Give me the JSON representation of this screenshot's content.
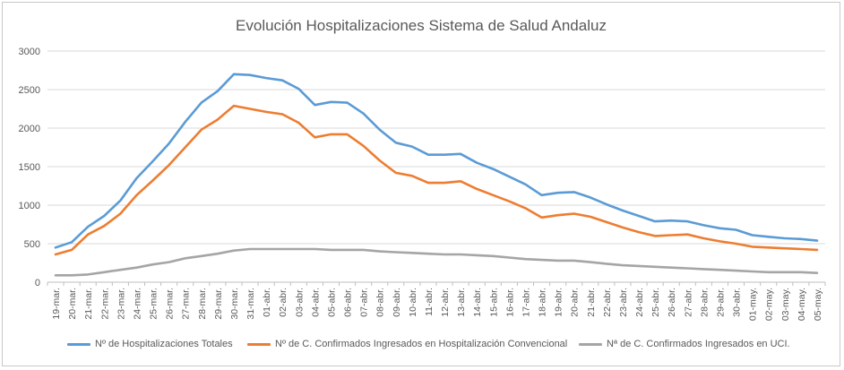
{
  "chart_data": {
    "type": "line",
    "title": "Evolución Hospitalizaciones Sistema de Salud Andaluz",
    "xlabel": "",
    "ylabel": "",
    "ylim": [
      0,
      3000
    ],
    "yticks": [
      0,
      500,
      1000,
      1500,
      2000,
      2500,
      3000
    ],
    "ytick_labels": [
      "0",
      "500",
      "1000",
      "1500",
      "2000",
      "2500",
      "3000"
    ],
    "grid": "horizontal",
    "legend": "bottom",
    "categories": [
      "19-mar.",
      "20-mar.",
      "21-mar.",
      "22-mar.",
      "23-mar.",
      "24-mar.",
      "25-mar.",
      "26-mar.",
      "27-mar.",
      "28-mar.",
      "29-mar.",
      "30-mar.",
      "31-mar.",
      "01-abr.",
      "02-abr.",
      "03-abr.",
      "04-abr.",
      "05-abr.",
      "06-abr.",
      "07-abr.",
      "08-abr.",
      "09-abr.",
      "10-abr.",
      "11-abr.",
      "12-abr.",
      "13-abr.",
      "14-abr.",
      "15-abr.",
      "16-abr.",
      "17-abr.",
      "18-abr.",
      "19-abr.",
      "20-abr.",
      "21-abr.",
      "22-abr.",
      "23-abr.",
      "24-abr.",
      "25-abr.",
      "26-abr.",
      "27-abr.",
      "28-abr.",
      "29-abr.",
      "30-abr.",
      "01-may.",
      "02-may.",
      "03-may.",
      "04-may.",
      "05-may."
    ],
    "series": [
      {
        "name": "Nº de Hospitalizaciones Totales",
        "color": "#5b9bd5",
        "values": [
          450,
          520,
          720,
          860,
          1060,
          1350,
          1570,
          1800,
          2080,
          2330,
          2480,
          2700,
          2690,
          2650,
          2620,
          2510,
          2300,
          2340,
          2330,
          2190,
          1980,
          1810,
          1760,
          1655,
          1655,
          1665,
          1550,
          1470,
          1370,
          1270,
          1130,
          1160,
          1170,
          1100,
          1010,
          930,
          860,
          790,
          800,
          790,
          740,
          700,
          680,
          610,
          590,
          570,
          560,
          540
        ]
      },
      {
        "name": "Nº de C. Confirmados Ingresados en Hospitalización Convencional",
        "color": "#ed7d31",
        "values": [
          360,
          420,
          620,
          730,
          890,
          1130,
          1320,
          1520,
          1750,
          1980,
          2110,
          2290,
          2250,
          2210,
          2180,
          2070,
          1880,
          1920,
          1920,
          1770,
          1580,
          1420,
          1380,
          1290,
          1290,
          1310,
          1210,
          1130,
          1050,
          960,
          840,
          870,
          890,
          850,
          780,
          710,
          650,
          600,
          610,
          620,
          570,
          530,
          500,
          460,
          450,
          440,
          430,
          420
        ]
      },
      {
        "name": "Nª de C. Confirmados Ingresados en UCI.",
        "color": "#a5a5a5",
        "values": [
          90,
          90,
          100,
          130,
          160,
          190,
          230,
          260,
          310,
          340,
          370,
          410,
          430,
          430,
          430,
          430,
          430,
          420,
          420,
          420,
          400,
          390,
          380,
          370,
          360,
          360,
          350,
          340,
          320,
          300,
          290,
          280,
          280,
          260,
          240,
          220,
          210,
          200,
          190,
          180,
          170,
          160,
          150,
          140,
          130,
          130,
          130,
          120
        ]
      }
    ]
  }
}
